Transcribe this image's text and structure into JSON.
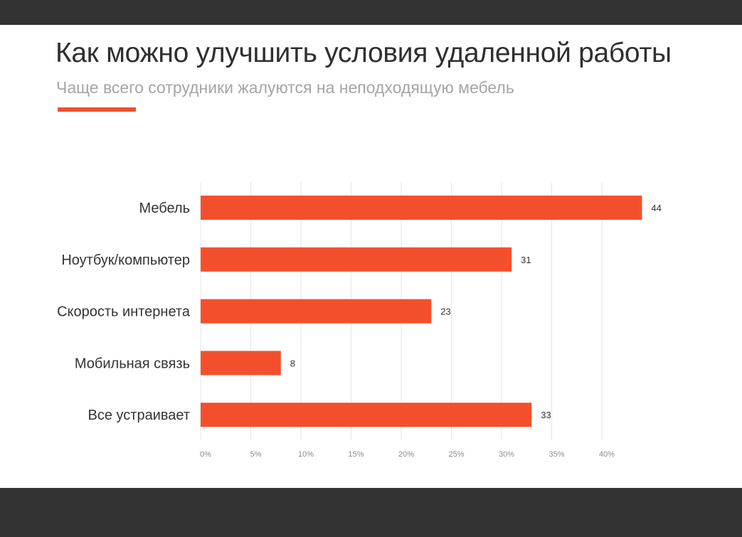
{
  "title": "Как можно улучшить условия удаленной работы",
  "subtitle": "Чаще всего сотрудники жалуются на неподходящую мебель",
  "colors": {
    "accent": "#f44f2d",
    "bar": "#f44f2d",
    "frame": "#333333",
    "grid": "#e6e6e6"
  },
  "chart_data": {
    "type": "bar",
    "orientation": "horizontal",
    "categories": [
      "Мебель",
      "Ноутбук/компьютер",
      "Скорость интернета",
      "Мобильная связь",
      "Все устраивает"
    ],
    "values": [
      44,
      31,
      23,
      8,
      33
    ],
    "data_labels": [
      "44",
      "31",
      "23",
      "8",
      "33"
    ],
    "x_ticks": [
      "0%",
      "5%",
      "10%",
      "15%",
      "20%",
      "25%",
      "30%",
      "35%",
      "40%"
    ],
    "xlim": [
      0,
      45
    ],
    "grid": true,
    "legend": "none"
  }
}
